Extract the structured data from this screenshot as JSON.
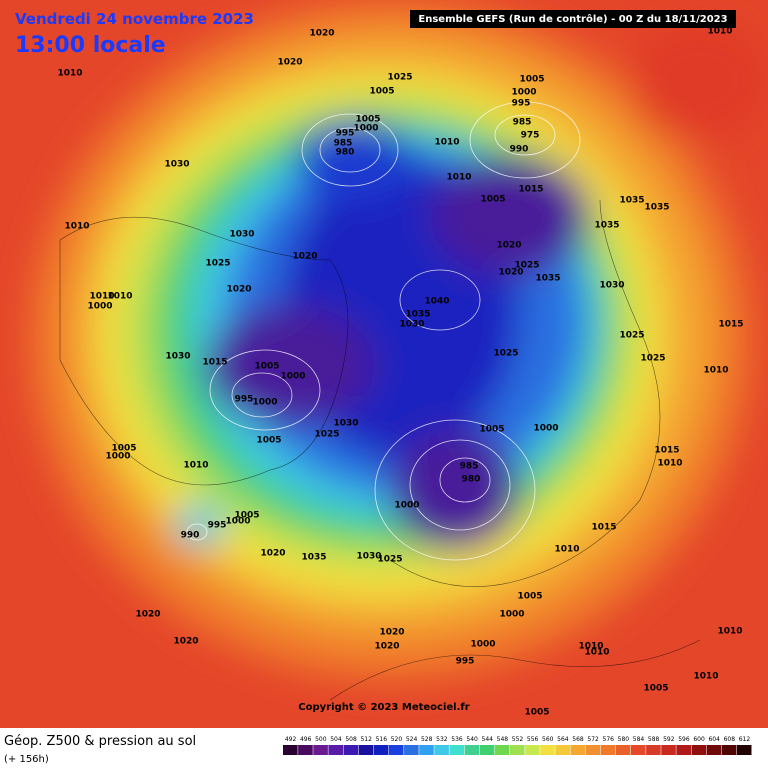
{
  "header": {
    "date": "Vendredi 24 novembre 2023",
    "time": "13:00 locale",
    "run": "Ensemble GEFS  (Run de contrôle)  -  00 Z du 18/11/2023"
  },
  "footer": {
    "copyright": "Copyright © 2023 Meteociel.fr",
    "field": "Géop. Z500 & pression au sol",
    "lead": "(+ 156h)"
  },
  "pressure_labels": [
    "1010",
    "1020",
    "1020",
    "1025",
    "1005",
    "1000",
    "995",
    "985",
    "975",
    "990",
    "1010",
    "1030",
    "1005",
    "1005",
    "1000",
    "995",
    "985",
    "980",
    "1010",
    "1010",
    "1005",
    "1015",
    "1035",
    "1035",
    "1035",
    "1010",
    "1030",
    "1020",
    "1025",
    "1020",
    "1035",
    "1025",
    "1020",
    "1020",
    "1030",
    "1010",
    "1010",
    "1000",
    "1040",
    "1035",
    "1030",
    "1015",
    "1025",
    "1030",
    "1015",
    "1005",
    "1000",
    "1025",
    "1025",
    "1010",
    "995",
    "1000",
    "1030",
    "1025",
    "1005",
    "1005",
    "1000",
    "1005",
    "1000",
    "1015",
    "1010",
    "1010",
    "985",
    "980",
    "1000",
    "1005",
    "1000",
    "995",
    "990",
    "1015",
    "1020",
    "1035",
    "1030",
    "1025",
    "1010",
    "1005",
    "1020",
    "1000",
    "1020",
    "1020",
    "1020",
    "1000",
    "995",
    "1010",
    "1010",
    "1010",
    "1010",
    "1005",
    "1005"
  ],
  "colorbar": {
    "ticks": [
      492,
      496,
      500,
      504,
      508,
      512,
      516,
      520,
      524,
      528,
      532,
      536,
      540,
      544,
      548,
      552,
      556,
      560,
      564,
      568,
      572,
      576,
      580,
      584,
      588,
      592,
      596,
      600,
      604,
      608,
      612
    ],
    "colors": [
      "#2a0030",
      "#4a0a60",
      "#6a1a90",
      "#5a1aa8",
      "#3a1ab0",
      "#1a10a0",
      "#1020c0",
      "#1a40e0",
      "#2a70e0",
      "#30a0f0",
      "#40c8e8",
      "#40e0d0",
      "#40d090",
      "#40d070",
      "#70d850",
      "#a0e050",
      "#c8e850",
      "#f2e040",
      "#f4c838",
      "#f4a830",
      "#f09030",
      "#f07a2c",
      "#e8602a",
      "#e44a2a",
      "#d83a28",
      "#c82a20",
      "#b01a18",
      "#901010",
      "#700a0a",
      "#500505",
      "#200000"
    ]
  }
}
